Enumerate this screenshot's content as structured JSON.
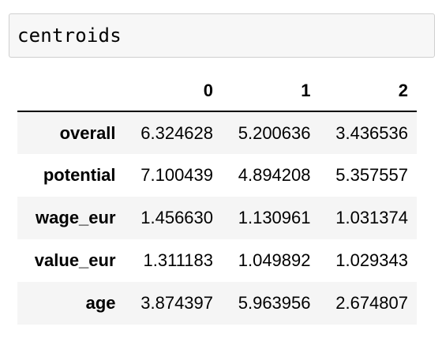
{
  "cell": {
    "code": "centroids"
  },
  "table": {
    "columns": [
      "",
      "0",
      "1",
      "2"
    ],
    "rows": [
      {
        "index": "overall",
        "values": [
          "6.324628",
          "5.200636",
          "3.436536"
        ]
      },
      {
        "index": "potential",
        "values": [
          "7.100439",
          "4.894208",
          "5.357557"
        ]
      },
      {
        "index": "wage_eur",
        "values": [
          "1.456630",
          "1.130961",
          "1.031374"
        ]
      },
      {
        "index": "value_eur",
        "values": [
          "1.311183",
          "1.049892",
          "1.029343"
        ]
      },
      {
        "index": "age",
        "values": [
          "3.874397",
          "5.963956",
          "2.674807"
        ]
      }
    ]
  },
  "colors": {
    "cell_background": "#f7f7f7",
    "cell_border": "#cfcfcf",
    "stripe": "#f5f5f5",
    "header_rule": "#000000"
  }
}
